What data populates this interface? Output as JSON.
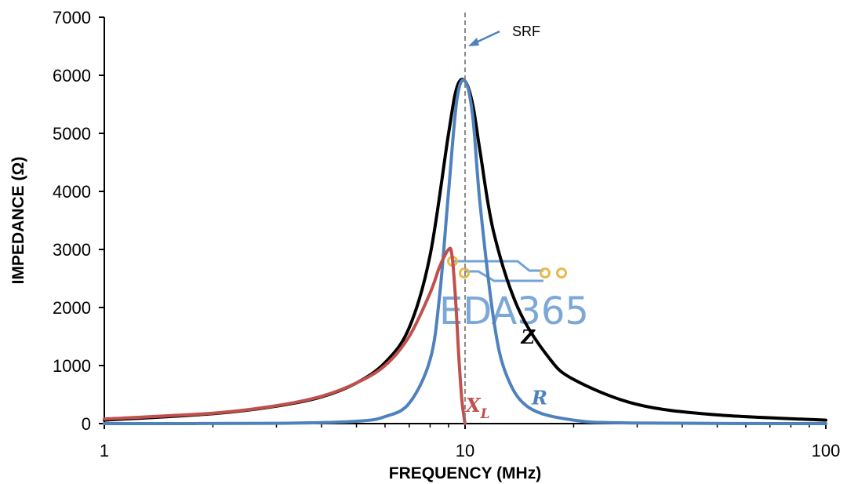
{
  "chart_data": {
    "type": "line",
    "title": "",
    "xlabel": "FREQUENCY (MHz)",
    "ylabel": "IMPEDANCE (Ω)",
    "xscale": "log",
    "xlim": [
      1,
      100
    ],
    "ylim": [
      0,
      7000
    ],
    "x_ticks": [
      "1",
      "10",
      "100"
    ],
    "y_ticks": [
      "0",
      "1000",
      "2000",
      "3000",
      "4000",
      "5000",
      "6000",
      "7000"
    ],
    "grid": false,
    "srf_annotation": {
      "label": "SRF",
      "x": 10
    },
    "series": [
      {
        "name": "Z",
        "label_text": "Z",
        "color": "#000000",
        "x": [
          1,
          2,
          3,
          4,
          5,
          6,
          7,
          8,
          9,
          9.5,
          10,
          10.5,
          11,
          12,
          14,
          17,
          20,
          30,
          50,
          100
        ],
        "y": [
          60,
          170,
          300,
          460,
          700,
          1050,
          1650,
          2900,
          5000,
          5800,
          5900,
          5500,
          4700,
          3300,
          2000,
          1150,
          760,
          330,
          150,
          60
        ]
      },
      {
        "name": "R",
        "label_text": "R",
        "color": "#4f81bd",
        "x": [
          1,
          3,
          5,
          6,
          7,
          8,
          8.5,
          9,
          9.5,
          10,
          10.5,
          11,
          12,
          13,
          15,
          20,
          30,
          100
        ],
        "y": [
          0,
          5,
          40,
          120,
          350,
          1100,
          2200,
          4000,
          5600,
          5900,
          5300,
          3800,
          1800,
          850,
          280,
          60,
          10,
          0
        ]
      },
      {
        "name": "XL",
        "label_text": "X",
        "label_subscript": "L",
        "color": "#c0504d",
        "x": [
          1,
          2,
          3,
          4,
          5,
          6,
          7,
          8,
          8.5,
          9,
          9.2,
          9.4,
          9.6,
          9.8,
          10
        ],
        "y": [
          80,
          180,
          310,
          470,
          700,
          1000,
          1500,
          2250,
          2700,
          3000,
          2900,
          2200,
          1200,
          400,
          0
        ]
      }
    ],
    "watermark": "EDA365"
  }
}
